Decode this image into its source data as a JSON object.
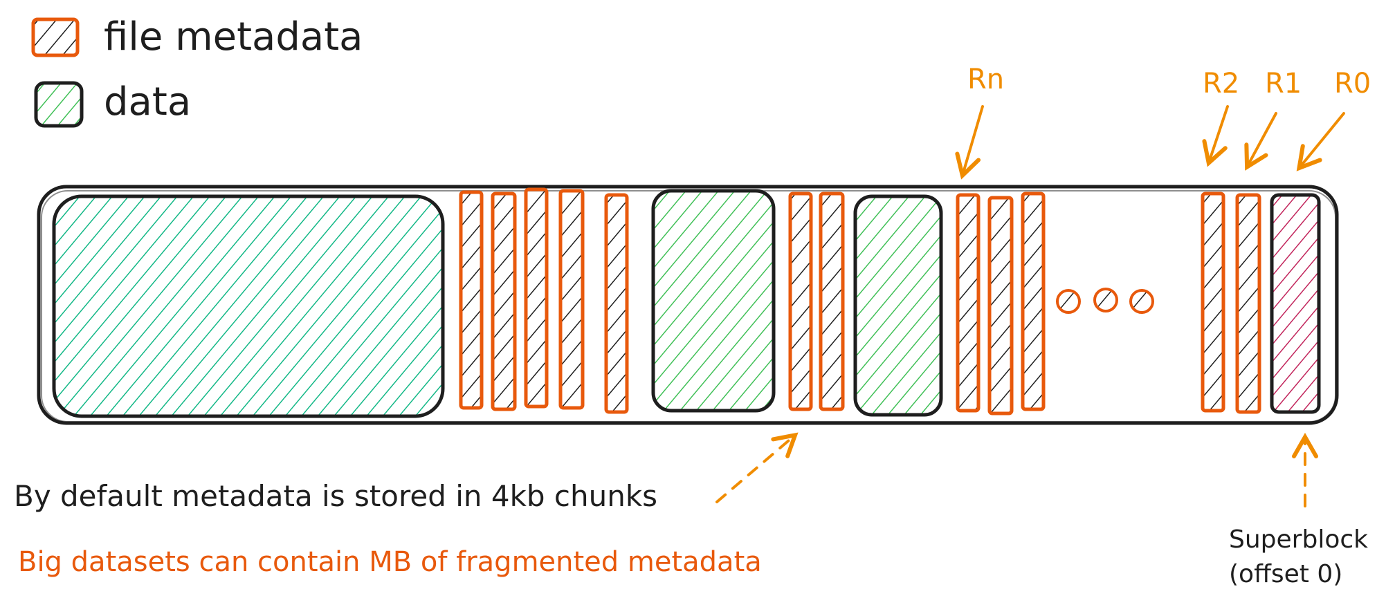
{
  "legend": {
    "file_metadata": {
      "label": "file metadata",
      "stroke_color": "#e8590c",
      "hatch_color": "#1e1e1e"
    },
    "data": {
      "label": "data",
      "stroke_color": "#1e1e1e",
      "hatch_color": "#40c057"
    }
  },
  "colors": {
    "metadata_stroke": "#e8590c",
    "data_green_hatch": "#40c057",
    "data_teal_hatch": "#12b886",
    "superblock_hatch": "#c2255c",
    "arrow_orange": "#f08c00",
    "outline": "#1e1e1e"
  },
  "region_labels": {
    "rn": "Rn",
    "r2": "R2",
    "r1": "R1",
    "r0": "R0"
  },
  "notes": {
    "chunk_note": "By default metadata is stored in 4kb chunks",
    "fragmentation_note": "Big datasets can contain MB of fragmented metadata"
  },
  "superblock": {
    "line1": "Superblock",
    "line2": "(offset 0)"
  }
}
